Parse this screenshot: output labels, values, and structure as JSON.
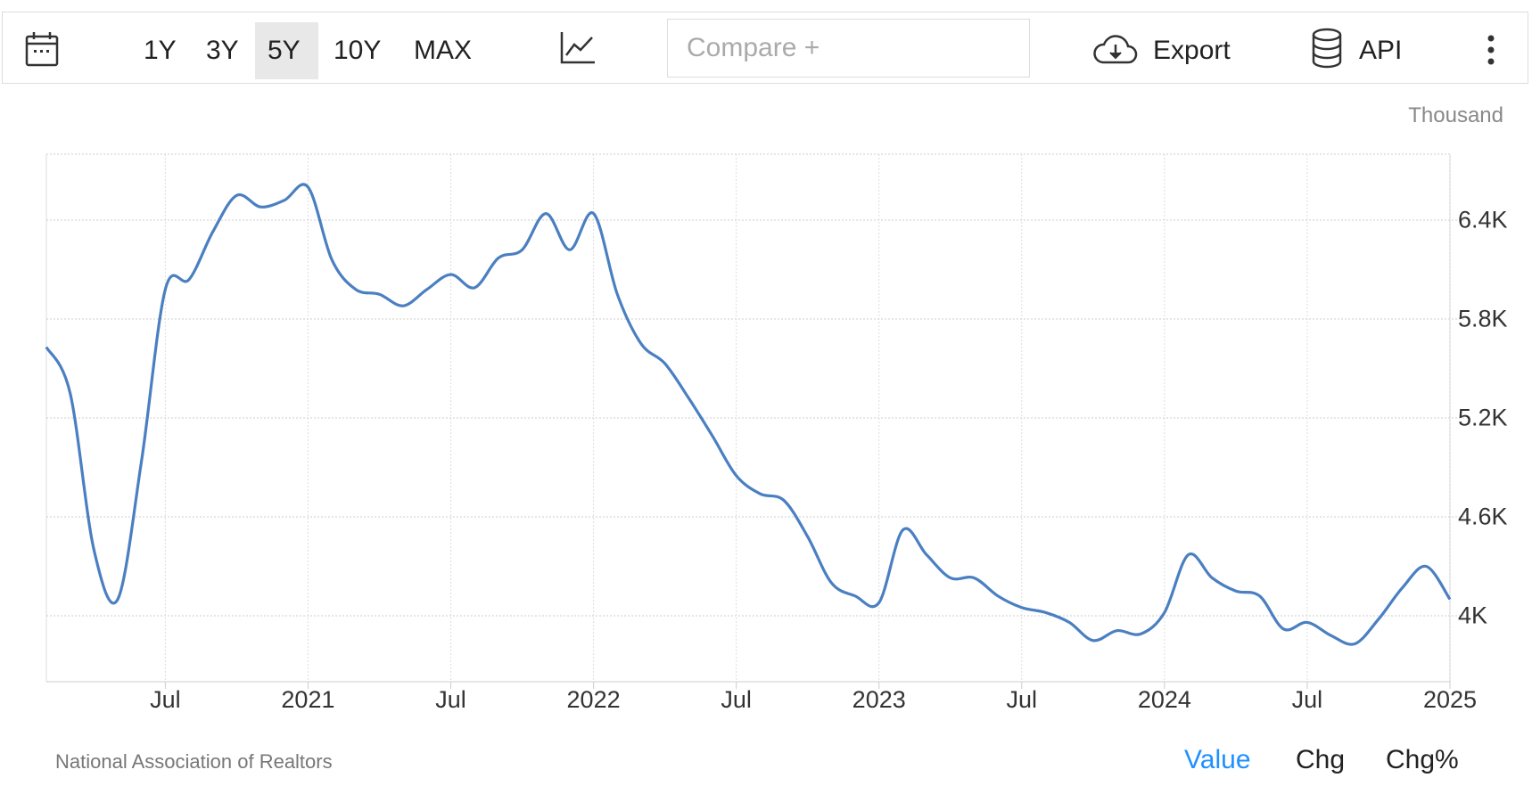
{
  "toolbar": {
    "ranges": [
      "1Y",
      "3Y",
      "5Y",
      "10Y",
      "MAX"
    ],
    "active_range": "5Y",
    "compare_placeholder": "Compare +",
    "export_label": "Export",
    "api_label": "API",
    "icons": [
      "calendar-icon",
      "line-chart-icon",
      "cloud-download-icon",
      "database-icon",
      "more-vertical-icon"
    ]
  },
  "footer": {
    "source": "National Association of Realtors",
    "modes": [
      "Value",
      "Chg",
      "Chg%"
    ],
    "active_mode": "Value",
    "active_color": "#1e90ff"
  },
  "chart_data": {
    "type": "line",
    "unit_label": "Thousand",
    "line_color": "#4a7fc1",
    "ylim": [
      3.6,
      6.8
    ],
    "y_ticks": [
      {
        "v": 4.0,
        "label": "4K"
      },
      {
        "v": 4.6,
        "label": "4.6K"
      },
      {
        "v": 5.2,
        "label": "5.2K"
      },
      {
        "v": 5.8,
        "label": "5.8K"
      },
      {
        "v": 6.4,
        "label": "6.4K"
      }
    ],
    "x_ticks": [
      {
        "v": "2020-07",
        "label": "Jul"
      },
      {
        "v": "2021-01",
        "label": "2021"
      },
      {
        "v": "2021-07",
        "label": "Jul"
      },
      {
        "v": "2022-01",
        "label": "2022"
      },
      {
        "v": "2022-07",
        "label": "Jul"
      },
      {
        "v": "2023-01",
        "label": "2023"
      },
      {
        "v": "2023-07",
        "label": "Jul"
      },
      {
        "v": "2024-01",
        "label": "2024"
      },
      {
        "v": "2024-07",
        "label": "Jul"
      },
      {
        "v": "2025-01",
        "label": "2025"
      }
    ],
    "xlim": [
      "2020-02",
      "2025-01"
    ],
    "grid": true,
    "series": [
      {
        "x": [
          "2020-02",
          "2020-03",
          "2020-04",
          "2020-05",
          "2020-06",
          "2020-07",
          "2020-08",
          "2020-09",
          "2020-10",
          "2020-11",
          "2020-12",
          "2021-01",
          "2021-02",
          "2021-03",
          "2021-04",
          "2021-05",
          "2021-06",
          "2021-07",
          "2021-08",
          "2021-09",
          "2021-10",
          "2021-11",
          "2021-12",
          "2022-01",
          "2022-02",
          "2022-03",
          "2022-04",
          "2022-05",
          "2022-06",
          "2022-07",
          "2022-08",
          "2022-09",
          "2022-10",
          "2022-11",
          "2022-12",
          "2023-01",
          "2023-02",
          "2023-03",
          "2023-04",
          "2023-05",
          "2023-06",
          "2023-07",
          "2023-08",
          "2023-09",
          "2023-10",
          "2023-11",
          "2023-12",
          "2024-01",
          "2024-02",
          "2024-03",
          "2024-04",
          "2024-05",
          "2024-06",
          "2024-07",
          "2024-08",
          "2024-09",
          "2024-10",
          "2024-11",
          "2024-12",
          "2025-01"
        ],
        "y": [
          5.63,
          5.35,
          4.4,
          4.1,
          4.94,
          5.98,
          6.04,
          6.33,
          6.55,
          6.48,
          6.52,
          6.6,
          6.16,
          5.98,
          5.95,
          5.88,
          5.98,
          6.07,
          5.99,
          6.17,
          6.22,
          6.44,
          6.22,
          6.44,
          5.95,
          5.65,
          5.53,
          5.32,
          5.09,
          4.85,
          4.74,
          4.7,
          4.48,
          4.2,
          4.12,
          4.08,
          4.52,
          4.37,
          4.23,
          4.23,
          4.12,
          4.05,
          4.02,
          3.96,
          3.85,
          3.91,
          3.89,
          4.02,
          4.37,
          4.23,
          4.15,
          4.12,
          3.92,
          3.96,
          3.88,
          3.83,
          3.98,
          4.17,
          4.3,
          4.1
        ]
      }
    ]
  }
}
